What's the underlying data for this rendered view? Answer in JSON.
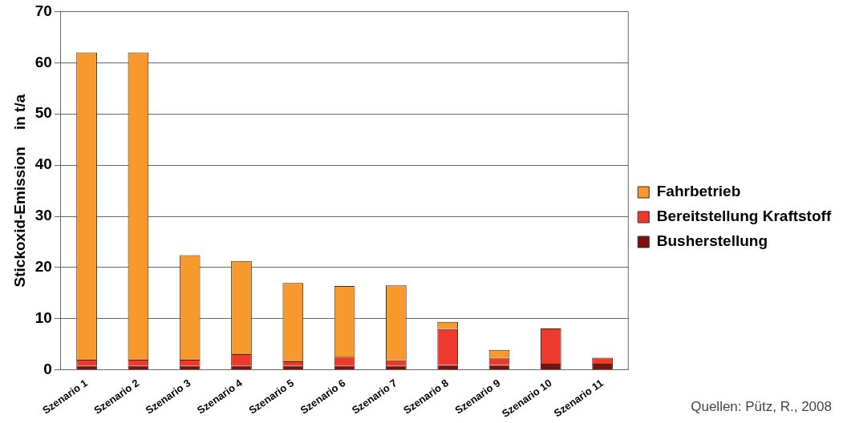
{
  "chart_data": {
    "type": "bar",
    "stacked": true,
    "ylabel": "Stickoxid-Emission    in t/a",
    "categories": [
      "Szenario 1",
      "Szenario 2",
      "Szenario 3",
      "Szenario 4",
      "Szenario 5",
      "Szenario 6",
      "Szenario 7",
      "Szenario 8",
      "Szenario 9",
      "Szenario 10",
      "Szenario 11"
    ],
    "series": [
      {
        "name": "Busherstellung",
        "color": "#7b1010",
        "values": [
          0.8,
          0.8,
          0.8,
          0.8,
          0.8,
          0.8,
          0.8,
          1.0,
          1.0,
          1.2,
          1.2
        ]
      },
      {
        "name": "Bereitstellung Kraftstoff",
        "color": "#ee3a2e",
        "values": [
          1.2,
          1.2,
          1.2,
          2.3,
          0.9,
          1.8,
          1.1,
          7.0,
          1.4,
          6.9,
          1.2
        ]
      },
      {
        "name": "Fahrbetrieb",
        "color": "#f7992d",
        "values": [
          60,
          60,
          20.4,
          18.2,
          15.3,
          13.8,
          14.6,
          1.4,
          1.5,
          0,
          0
        ]
      }
    ],
    "ylim": [
      0,
      70
    ],
    "yticks": [
      0,
      10,
      20,
      30,
      40,
      50,
      60,
      70
    ],
    "grid": "y",
    "legend": "right",
    "annotations": [
      "Quellen: Pütz, R., 2008"
    ]
  }
}
